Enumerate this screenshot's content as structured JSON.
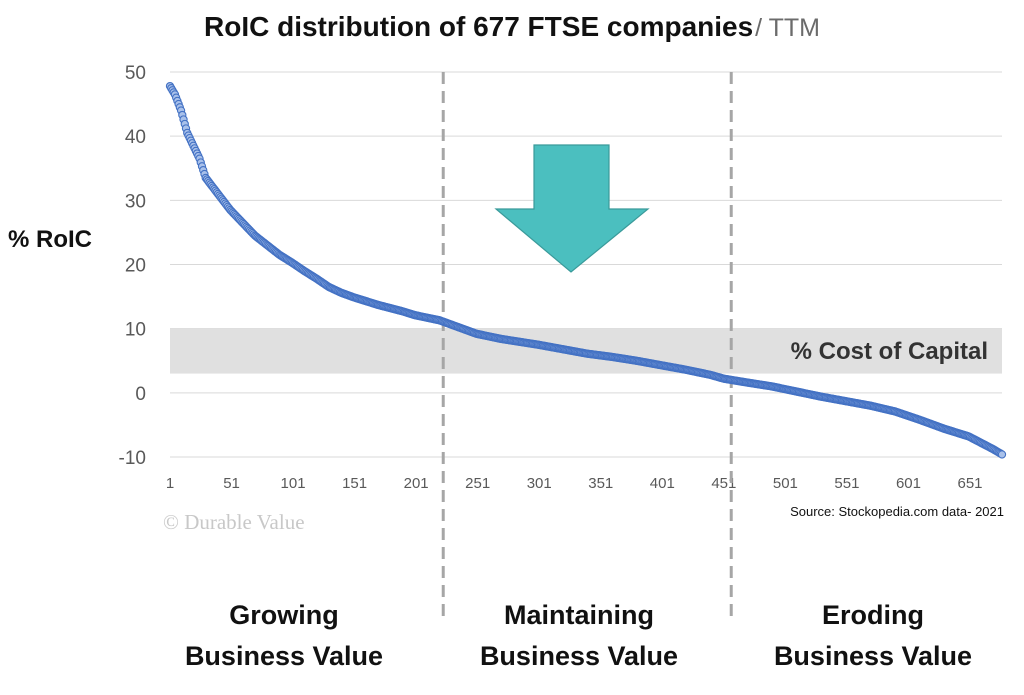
{
  "chart_data": {
    "type": "scatter",
    "title": "RoIC distribution of 677 FTSE companies",
    "subtitle": "/ TTM",
    "ylabel": "% RoIC",
    "xlabel": "",
    "x_ticks": [
      "1",
      "51",
      "101",
      "151",
      "201",
      "251",
      "301",
      "351",
      "401",
      "451",
      "501",
      "551",
      "601",
      "651"
    ],
    "y_ticks": [
      "50",
      "40",
      "30",
      "20",
      "10",
      "0",
      "-10"
    ],
    "xlim": [
      1,
      677
    ],
    "ylim": [
      -10,
      50
    ],
    "grid": true,
    "series_color": "#4472c4",
    "point_fill": "#a9c1ea",
    "curve_points": [
      [
        1,
        47.8
      ],
      [
        5,
        46.5
      ],
      [
        10,
        44
      ],
      [
        15,
        40.5
      ],
      [
        20,
        38.5
      ],
      [
        25,
        36.5
      ],
      [
        30,
        33.5
      ],
      [
        40,
        31
      ],
      [
        50,
        28.5
      ],
      [
        60,
        26.5
      ],
      [
        70,
        24.5
      ],
      [
        80,
        23
      ],
      [
        90,
        21.5
      ],
      [
        100,
        20.3
      ],
      [
        110,
        19
      ],
      [
        120,
        17.8
      ],
      [
        130,
        16.5
      ],
      [
        140,
        15.6
      ],
      [
        150,
        14.9
      ],
      [
        160,
        14.3
      ],
      [
        170,
        13.7
      ],
      [
        180,
        13.2
      ],
      [
        190,
        12.7
      ],
      [
        200,
        12.1
      ],
      [
        210,
        11.7
      ],
      [
        220,
        11.3
      ],
      [
        230,
        10.6
      ],
      [
        240,
        9.9
      ],
      [
        250,
        9.2
      ],
      [
        260,
        8.8
      ],
      [
        270,
        8.4
      ],
      [
        280,
        8.1
      ],
      [
        290,
        7.8
      ],
      [
        300,
        7.5
      ],
      [
        320,
        6.8
      ],
      [
        340,
        6.1
      ],
      [
        360,
        5.6
      ],
      [
        380,
        5.0
      ],
      [
        400,
        4.3
      ],
      [
        420,
        3.6
      ],
      [
        440,
        2.8
      ],
      [
        451,
        2.2
      ],
      [
        470,
        1.6
      ],
      [
        490,
        1.0
      ],
      [
        510,
        0.2
      ],
      [
        530,
        -0.6
      ],
      [
        550,
        -1.3
      ],
      [
        570,
        -2.0
      ],
      [
        590,
        -2.9
      ],
      [
        610,
        -4.2
      ],
      [
        630,
        -5.6
      ],
      [
        650,
        -6.8
      ],
      [
        660,
        -7.8
      ],
      [
        670,
        -8.8
      ],
      [
        677,
        -9.6
      ]
    ],
    "cost_of_capital_band": {
      "from": 3,
      "to": 10,
      "label": "% Cost of Capital",
      "color": "#e0e0e0"
    },
    "region_dividers_x": [
      223,
      457
    ],
    "regions": [
      {
        "line1": "Growing",
        "line2": "Business Value"
      },
      {
        "line1": "Maintaining",
        "line2": "Business Value"
      },
      {
        "line1": "Eroding",
        "line2": "Business Value"
      }
    ],
    "arrow_color": "#4bbfbf",
    "source": "Source: Stockopedia.com data- 2021",
    "watermark": "© Durable Value"
  }
}
